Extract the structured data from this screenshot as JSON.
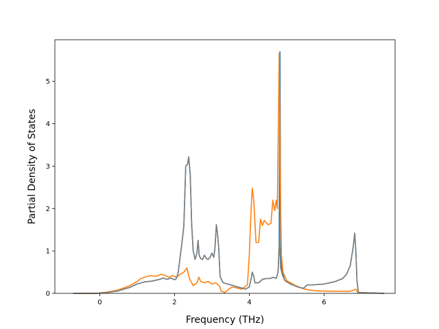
{
  "chart_data": {
    "type": "line",
    "title": "",
    "xlabel": "Frequency (THz)",
    "ylabel": "Partial Density of States",
    "xlim": [
      -1.2,
      7.9
    ],
    "ylim": [
      0,
      5.98
    ],
    "xticks": [
      0,
      2,
      4,
      6
    ],
    "yticks": [
      0,
      1,
      2,
      3,
      4,
      5
    ],
    "grid": false,
    "legend": "none",
    "series": [
      {
        "color": "#1f77b4",
        "points": [
          [
            -0.7,
            0
          ],
          [
            -0.1,
            0
          ],
          [
            0.2,
            0.02
          ],
          [
            0.5,
            0.06
          ],
          [
            0.8,
            0.14
          ],
          [
            1.0,
            0.22
          ],
          [
            1.2,
            0.27
          ],
          [
            1.4,
            0.29
          ],
          [
            1.6,
            0.33
          ],
          [
            1.7,
            0.36
          ],
          [
            1.8,
            0.33
          ],
          [
            1.9,
            0.36
          ],
          [
            2.0,
            0.32
          ],
          [
            2.05,
            0.35
          ],
          [
            2.1,
            0.5
          ],
          [
            2.2,
            1.2
          ],
          [
            2.25,
            1.6
          ],
          [
            2.3,
            3.0
          ],
          [
            2.35,
            3.05
          ],
          [
            2.38,
            3.22
          ],
          [
            2.42,
            2.8
          ],
          [
            2.46,
            1.6
          ],
          [
            2.5,
            1.0
          ],
          [
            2.55,
            0.8
          ],
          [
            2.6,
            0.95
          ],
          [
            2.63,
            1.25
          ],
          [
            2.66,
            0.9
          ],
          [
            2.7,
            0.82
          ],
          [
            2.75,
            0.8
          ],
          [
            2.8,
            0.9
          ],
          [
            2.85,
            0.82
          ],
          [
            2.9,
            0.8
          ],
          [
            2.95,
            0.85
          ],
          [
            3.0,
            0.95
          ],
          [
            3.05,
            0.85
          ],
          [
            3.08,
            1.05
          ],
          [
            3.12,
            1.62
          ],
          [
            3.15,
            1.4
          ],
          [
            3.18,
            1.1
          ],
          [
            3.22,
            0.4
          ],
          [
            3.3,
            0.25
          ],
          [
            3.5,
            0.2
          ],
          [
            3.7,
            0.15
          ],
          [
            3.9,
            0.1
          ],
          [
            4.0,
            0.15
          ],
          [
            4.05,
            0.35
          ],
          [
            4.08,
            0.5
          ],
          [
            4.12,
            0.4
          ],
          [
            4.15,
            0.25
          ],
          [
            4.25,
            0.25
          ],
          [
            4.35,
            0.33
          ],
          [
            4.45,
            0.35
          ],
          [
            4.55,
            0.35
          ],
          [
            4.65,
            0.38
          ],
          [
            4.72,
            0.35
          ],
          [
            4.77,
            0.5
          ],
          [
            4.8,
            1.15
          ],
          [
            4.82,
            5.7
          ],
          [
            4.84,
            0.8
          ],
          [
            4.88,
            0.5
          ],
          [
            4.95,
            0.3
          ],
          [
            5.1,
            0.22
          ],
          [
            5.3,
            0.15
          ],
          [
            5.45,
            0.12
          ],
          [
            5.55,
            0.2
          ],
          [
            5.7,
            0.2
          ],
          [
            6.0,
            0.22
          ],
          [
            6.3,
            0.28
          ],
          [
            6.5,
            0.35
          ],
          [
            6.6,
            0.45
          ],
          [
            6.7,
            0.65
          ],
          [
            6.78,
            1.1
          ],
          [
            6.82,
            1.42
          ],
          [
            6.85,
            1.0
          ],
          [
            6.88,
            0.3
          ],
          [
            6.92,
            0.02
          ],
          [
            7.6,
            0
          ]
        ]
      },
      {
        "color": "#ff7f0e",
        "points": [
          [
            -0.7,
            0
          ],
          [
            -0.1,
            0
          ],
          [
            0.2,
            0.03
          ],
          [
            0.5,
            0.08
          ],
          [
            0.8,
            0.18
          ],
          [
            1.0,
            0.28
          ],
          [
            1.1,
            0.35
          ],
          [
            1.2,
            0.38
          ],
          [
            1.35,
            0.42
          ],
          [
            1.5,
            0.4
          ],
          [
            1.65,
            0.45
          ],
          [
            1.75,
            0.42
          ],
          [
            1.85,
            0.38
          ],
          [
            1.95,
            0.42
          ],
          [
            2.05,
            0.38
          ],
          [
            2.15,
            0.45
          ],
          [
            2.25,
            0.5
          ],
          [
            2.33,
            0.6
          ],
          [
            2.4,
            0.35
          ],
          [
            2.5,
            0.18
          ],
          [
            2.6,
            0.25
          ],
          [
            2.65,
            0.38
          ],
          [
            2.7,
            0.28
          ],
          [
            2.8,
            0.25
          ],
          [
            2.9,
            0.28
          ],
          [
            3.0,
            0.22
          ],
          [
            3.1,
            0.25
          ],
          [
            3.2,
            0.18
          ],
          [
            3.25,
            0.05
          ],
          [
            3.35,
            0.02
          ],
          [
            3.45,
            0.1
          ],
          [
            3.55,
            0.15
          ],
          [
            3.7,
            0.12
          ],
          [
            3.8,
            0.1
          ],
          [
            3.95,
            0.2
          ],
          [
            4.0,
            0.9
          ],
          [
            4.05,
            2.0
          ],
          [
            4.08,
            2.48
          ],
          [
            4.12,
            2.2
          ],
          [
            4.18,
            1.2
          ],
          [
            4.25,
            1.2
          ],
          [
            4.3,
            1.75
          ],
          [
            4.35,
            1.6
          ],
          [
            4.4,
            1.72
          ],
          [
            4.5,
            1.62
          ],
          [
            4.58,
            1.65
          ],
          [
            4.63,
            2.2
          ],
          [
            4.68,
            1.95
          ],
          [
            4.72,
            2.2
          ],
          [
            4.75,
            2.0
          ],
          [
            4.8,
            5.65
          ],
          [
            4.83,
            2.5
          ],
          [
            4.86,
            0.9
          ],
          [
            4.9,
            0.5
          ],
          [
            5.0,
            0.3
          ],
          [
            5.2,
            0.2
          ],
          [
            5.4,
            0.12
          ],
          [
            5.6,
            0.08
          ],
          [
            5.8,
            0.06
          ],
          [
            6.2,
            0.05
          ],
          [
            6.5,
            0.05
          ],
          [
            6.7,
            0.05
          ],
          [
            6.8,
            0.08
          ],
          [
            6.85,
            0.1
          ],
          [
            6.9,
            0.02
          ],
          [
            7.6,
            0
          ]
        ]
      },
      {
        "color": "#7f7f7f",
        "points": [
          [
            -0.7,
            0
          ],
          [
            -0.1,
            0
          ],
          [
            0.2,
            0.02
          ],
          [
            0.5,
            0.06
          ],
          [
            0.8,
            0.14
          ],
          [
            1.0,
            0.22
          ],
          [
            1.2,
            0.27
          ],
          [
            1.4,
            0.29
          ],
          [
            1.6,
            0.33
          ],
          [
            1.7,
            0.36
          ],
          [
            1.8,
            0.33
          ],
          [
            1.9,
            0.36
          ],
          [
            2.0,
            0.32
          ],
          [
            2.05,
            0.35
          ],
          [
            2.1,
            0.5
          ],
          [
            2.2,
            1.2
          ],
          [
            2.25,
            1.6
          ],
          [
            2.3,
            3.0
          ],
          [
            2.35,
            3.05
          ],
          [
            2.38,
            3.22
          ],
          [
            2.42,
            2.8
          ],
          [
            2.46,
            1.6
          ],
          [
            2.5,
            1.0
          ],
          [
            2.55,
            0.8
          ],
          [
            2.6,
            0.95
          ],
          [
            2.63,
            1.25
          ],
          [
            2.66,
            0.9
          ],
          [
            2.7,
            0.82
          ],
          [
            2.75,
            0.8
          ],
          [
            2.8,
            0.9
          ],
          [
            2.85,
            0.82
          ],
          [
            2.9,
            0.8
          ],
          [
            2.95,
            0.85
          ],
          [
            3.0,
            0.95
          ],
          [
            3.05,
            0.85
          ],
          [
            3.08,
            1.05
          ],
          [
            3.12,
            1.62
          ],
          [
            3.15,
            1.4
          ],
          [
            3.18,
            1.1
          ],
          [
            3.22,
            0.4
          ],
          [
            3.3,
            0.25
          ],
          [
            3.5,
            0.2
          ],
          [
            3.7,
            0.15
          ],
          [
            3.9,
            0.1
          ],
          [
            4.0,
            0.15
          ],
          [
            4.05,
            0.35
          ],
          [
            4.08,
            0.5
          ],
          [
            4.12,
            0.4
          ],
          [
            4.15,
            0.25
          ],
          [
            4.25,
            0.25
          ],
          [
            4.35,
            0.33
          ],
          [
            4.45,
            0.35
          ],
          [
            4.55,
            0.35
          ],
          [
            4.65,
            0.38
          ],
          [
            4.72,
            0.35
          ],
          [
            4.77,
            0.5
          ],
          [
            4.8,
            1.12
          ],
          [
            4.82,
            1.0
          ],
          [
            4.84,
            0.6
          ],
          [
            4.88,
            0.45
          ],
          [
            4.95,
            0.3
          ],
          [
            5.1,
            0.22
          ],
          [
            5.3,
            0.15
          ],
          [
            5.45,
            0.12
          ],
          [
            5.55,
            0.2
          ],
          [
            5.7,
            0.2
          ],
          [
            6.0,
            0.22
          ],
          [
            6.3,
            0.28
          ],
          [
            6.5,
            0.35
          ],
          [
            6.6,
            0.45
          ],
          [
            6.7,
            0.65
          ],
          [
            6.78,
            1.1
          ],
          [
            6.82,
            1.42
          ],
          [
            6.85,
            1.0
          ],
          [
            6.88,
            0.3
          ],
          [
            6.92,
            0.02
          ],
          [
            7.6,
            0
          ]
        ]
      }
    ]
  }
}
